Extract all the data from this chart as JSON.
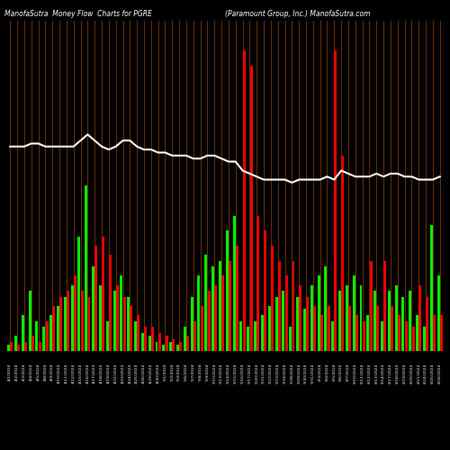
{
  "title_left": "ManofaSutra  Money Flow  Charts for PGRE",
  "title_right": "(Paramount Group, Inc.) ManofaSutra.com",
  "bg_color": "#000000",
  "bar_green": "#00ee00",
  "bar_red": "#ee0000",
  "orange_line": "#8B4500",
  "line_color": "#ffffff",
  "dates": [
    "4/1/2024",
    "4/2/2024",
    "4/3/2024",
    "4/4/2024",
    "4/5/2024",
    "4/8/2024",
    "4/9/2024",
    "4/10/2024",
    "4/11/2024",
    "4/12/2024",
    "4/15/2024",
    "4/16/2024",
    "4/17/2024",
    "4/18/2024",
    "4/19/2024",
    "4/22/2024",
    "4/23/2024",
    "4/24/2024",
    "4/25/2024",
    "4/26/2024",
    "4/29/2024",
    "4/30/2024",
    "5/1/2024",
    "5/2/2024",
    "5/3/2024",
    "5/6/2024",
    "5/7/2024",
    "5/8/2024",
    "5/9/2024",
    "5/10/2024",
    "5/13/2024",
    "5/14/2024",
    "5/15/2024",
    "5/16/2024",
    "5/17/2024",
    "5/20/2024",
    "5/21/2024",
    "5/22/2024",
    "5/23/2024",
    "5/24/2024",
    "5/28/2024",
    "5/29/2024",
    "5/30/2024",
    "5/31/2024",
    "6/3/2024",
    "6/4/2024",
    "6/5/2024",
    "6/6/2024",
    "6/7/2024",
    "6/10/2024",
    "6/11/2024",
    "6/12/2024",
    "6/13/2024",
    "6/14/2024",
    "6/17/2024",
    "6/18/2024",
    "6/19/2024",
    "6/20/2024",
    "6/21/2024",
    "6/24/2024",
    "6/25/2024",
    "6/26/2024"
  ],
  "green_vals": [
    2,
    5,
    12,
    20,
    10,
    8,
    12,
    15,
    18,
    22,
    38,
    55,
    28,
    22,
    10,
    20,
    25,
    18,
    10,
    6,
    5,
    3,
    2,
    3,
    2,
    8,
    18,
    25,
    32,
    28,
    30,
    40,
    45,
    10,
    8,
    10,
    12,
    15,
    18,
    20,
    8,
    18,
    14,
    22,
    25,
    28,
    10,
    20,
    22,
    25,
    22,
    12,
    20,
    10,
    20,
    22,
    18,
    20,
    12,
    8,
    42,
    25
  ],
  "red_vals": [
    3,
    2,
    3,
    5,
    3,
    10,
    15,
    18,
    20,
    25,
    20,
    18,
    35,
    38,
    32,
    22,
    18,
    15,
    12,
    8,
    8,
    6,
    5,
    4,
    3,
    5,
    10,
    15,
    20,
    22,
    25,
    30,
    35,
    100,
    95,
    45,
    40,
    35,
    30,
    25,
    30,
    22,
    18,
    15,
    12,
    15,
    100,
    65,
    15,
    12,
    10,
    30,
    15,
    30,
    15,
    12,
    10,
    8,
    22,
    18,
    12,
    12
  ],
  "line_vals": [
    68,
    68,
    68,
    69,
    69,
    68,
    68,
    68,
    68,
    68,
    70,
    72,
    70,
    68,
    67,
    68,
    70,
    70,
    68,
    67,
    67,
    66,
    66,
    65,
    65,
    65,
    64,
    64,
    65,
    65,
    64,
    63,
    63,
    60,
    59,
    58,
    57,
    57,
    57,
    57,
    56,
    57,
    57,
    57,
    57,
    58,
    57,
    60,
    59,
    58,
    58,
    58,
    59,
    58,
    59,
    59,
    58,
    58,
    57,
    57,
    57,
    58
  ],
  "y_max": 110
}
